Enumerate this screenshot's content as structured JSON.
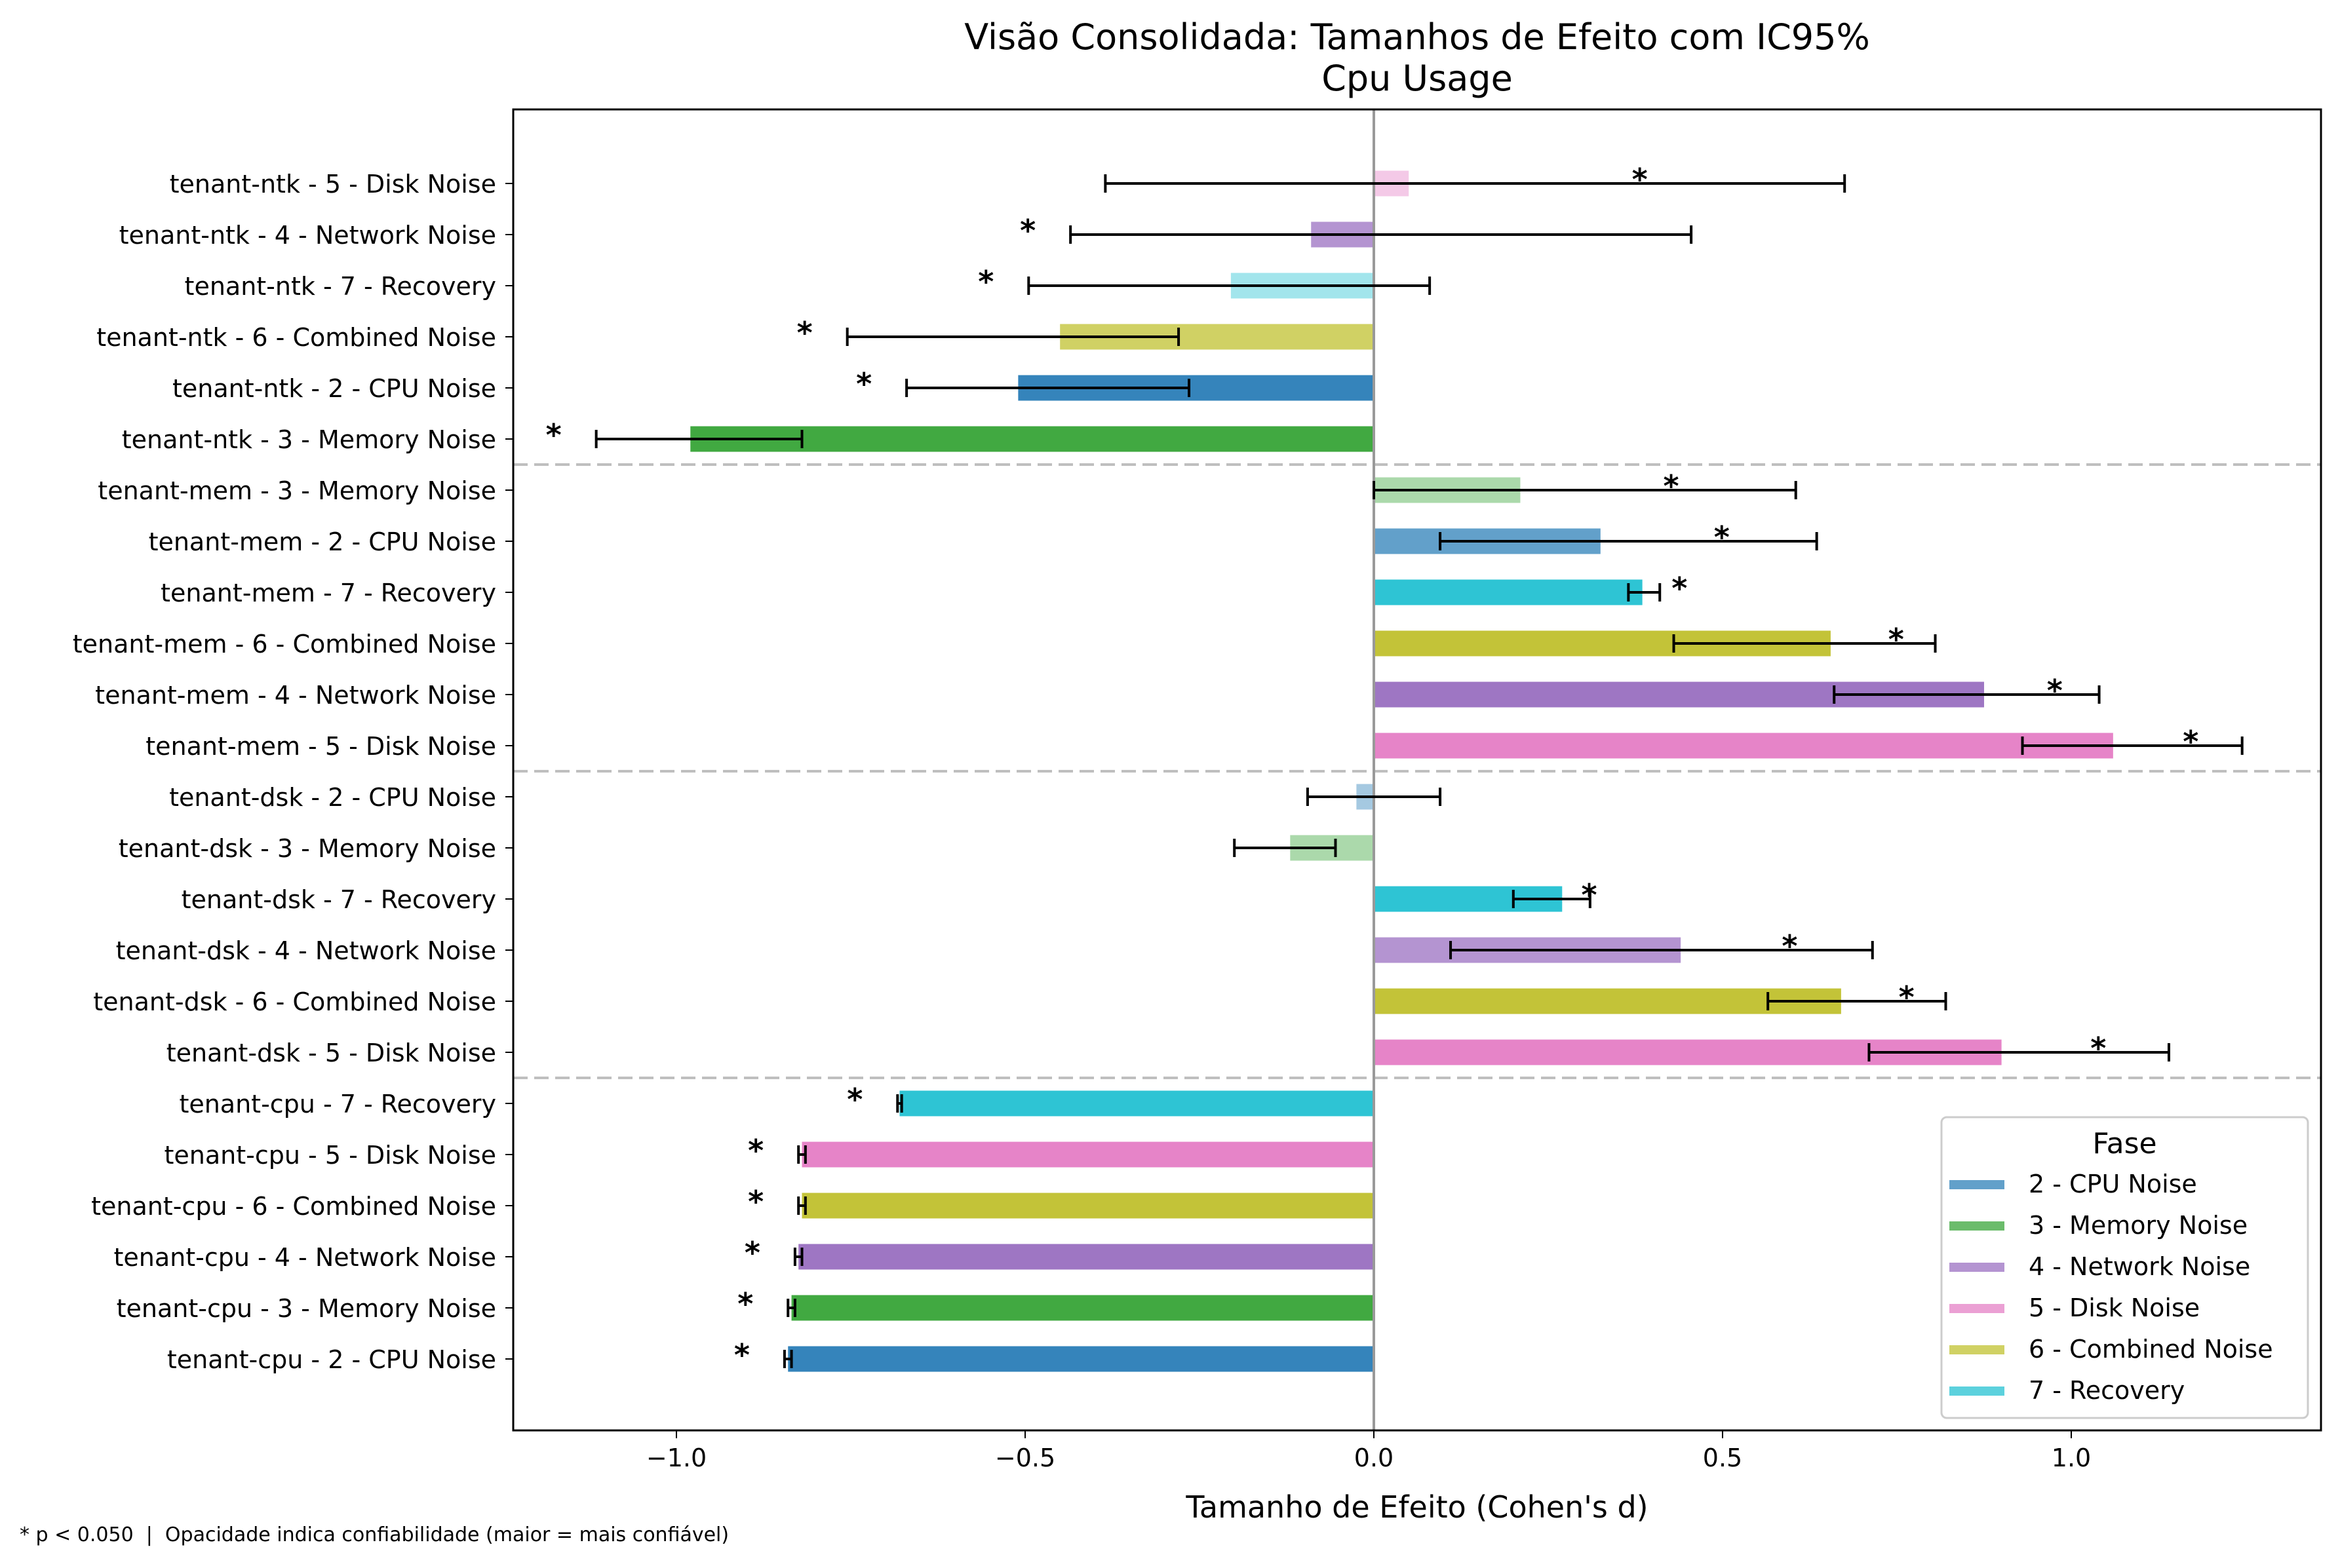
{
  "chart_data": {
    "type": "bar",
    "orientation": "horizontal",
    "title": "Visão Consolidada: Tamanhos de Efeito com IC95%",
    "subtitle": "Cpu Usage",
    "xlabel": "Tamanho de Efeito (Cohen's d)",
    "xlim": [
      -1.25,
      1.36
    ],
    "xticks": [
      -1.0,
      -0.5,
      0.0,
      0.5,
      1.0
    ],
    "xtick_labels": [
      "−1.0",
      "−0.5",
      "0.0",
      "0.5",
      "1.0"
    ],
    "grid": false,
    "legend": {
      "title": "Fase",
      "placement": "bottom-right",
      "entries": [
        {
          "label": "2 - CPU Noise",
          "color": "#1f77b4"
        },
        {
          "label": "3 - Memory Noise",
          "color": "#2ca02c"
        },
        {
          "label": "4 - Network Noise",
          "color": "#9467bd"
        },
        {
          "label": "5 - Disk Noise",
          "color": "#e377c2"
        },
        {
          "label": "6 - Combined Noise",
          "color": "#bcbd22"
        },
        {
          "label": "7 - Recovery",
          "color": "#17becf"
        }
      ]
    },
    "significance_marker": "*",
    "footnote": "* p < 0.050  |  Opacidade indica confiabilidade (maior = mais confiável)",
    "group_separators_after": [
      6,
      12,
      18
    ],
    "rows": [
      {
        "label": "tenant-cpu - 2 - CPU Noise",
        "value": -0.84,
        "ci": [
          -0.845,
          -0.835
        ],
        "color": "#1f77b4",
        "opacity": 0.9,
        "significant": true
      },
      {
        "label": "tenant-cpu - 3 - Memory Noise",
        "value": -0.835,
        "ci": [
          -0.84,
          -0.83
        ],
        "color": "#2ca02c",
        "opacity": 0.9,
        "significant": true
      },
      {
        "label": "tenant-cpu - 4 - Network Noise",
        "value": -0.825,
        "ci": [
          -0.83,
          -0.82
        ],
        "color": "#9467bd",
        "opacity": 0.9,
        "significant": true
      },
      {
        "label": "tenant-cpu - 6 - Combined Noise",
        "value": -0.82,
        "ci": [
          -0.825,
          -0.815
        ],
        "color": "#bcbd22",
        "opacity": 0.9,
        "significant": true
      },
      {
        "label": "tenant-cpu - 5 - Disk Noise",
        "value": -0.82,
        "ci": [
          -0.825,
          -0.815
        ],
        "color": "#e377c2",
        "opacity": 0.9,
        "significant": true
      },
      {
        "label": "tenant-cpu - 7 - Recovery",
        "value": -0.68,
        "ci": [
          -0.683,
          -0.677
        ],
        "color": "#17becf",
        "opacity": 0.9,
        "significant": true
      },
      {
        "label": "tenant-dsk - 5 - Disk Noise",
        "value": 0.9,
        "ci": [
          0.71,
          1.14
        ],
        "color": "#e377c2",
        "opacity": 0.9,
        "significant": true
      },
      {
        "label": "tenant-dsk - 6 - Combined Noise",
        "value": 0.67,
        "ci": [
          0.565,
          0.82
        ],
        "color": "#bcbd22",
        "opacity": 0.9,
        "significant": true
      },
      {
        "label": "tenant-dsk - 4 - Network Noise",
        "value": 0.44,
        "ci": [
          0.11,
          0.715
        ],
        "color": "#9467bd",
        "opacity": 0.7,
        "significant": true
      },
      {
        "label": "tenant-dsk - 7 - Recovery",
        "value": 0.27,
        "ci": [
          0.2,
          0.31
        ],
        "color": "#17becf",
        "opacity": 0.9,
        "significant": true
      },
      {
        "label": "tenant-dsk - 3 - Memory Noise",
        "value": -0.12,
        "ci": [
          -0.2,
          -0.055
        ],
        "color": "#2ca02c",
        "opacity": 0.4,
        "significant": false
      },
      {
        "label": "tenant-dsk - 2 - CPU Noise",
        "value": -0.025,
        "ci": [
          -0.095,
          0.095
        ],
        "color": "#1f77b4",
        "opacity": 0.4,
        "significant": false
      },
      {
        "label": "tenant-mem - 5 - Disk Noise",
        "value": 1.06,
        "ci": [
          0.93,
          1.245
        ],
        "color": "#e377c2",
        "opacity": 0.9,
        "significant": true
      },
      {
        "label": "tenant-mem - 4 - Network Noise",
        "value": 0.875,
        "ci": [
          0.66,
          1.04
        ],
        "color": "#9467bd",
        "opacity": 0.9,
        "significant": true
      },
      {
        "label": "tenant-mem - 6 - Combined Noise",
        "value": 0.655,
        "ci": [
          0.43,
          0.805
        ],
        "color": "#bcbd22",
        "opacity": 0.9,
        "significant": true
      },
      {
        "label": "tenant-mem - 7 - Recovery",
        "value": 0.385,
        "ci": [
          0.365,
          0.41
        ],
        "color": "#17becf",
        "opacity": 0.9,
        "significant": true
      },
      {
        "label": "tenant-mem - 2 - CPU Noise",
        "value": 0.325,
        "ci": [
          0.095,
          0.635
        ],
        "color": "#1f77b4",
        "opacity": 0.7,
        "significant": true
      },
      {
        "label": "tenant-mem - 3 - Memory Noise",
        "value": 0.21,
        "ci": [
          0.0,
          0.605
        ],
        "color": "#2ca02c",
        "opacity": 0.4,
        "significant": true
      },
      {
        "label": "tenant-ntk - 3 - Memory Noise",
        "value": -0.98,
        "ci": [
          -1.115,
          -0.82
        ],
        "color": "#2ca02c",
        "opacity": 0.9,
        "significant": true
      },
      {
        "label": "tenant-ntk - 2 - CPU Noise",
        "value": -0.51,
        "ci": [
          -0.67,
          -0.265
        ],
        "color": "#1f77b4",
        "opacity": 0.9,
        "significant": true
      },
      {
        "label": "tenant-ntk - 6 - Combined Noise",
        "value": -0.45,
        "ci": [
          -0.755,
          -0.28
        ],
        "color": "#bcbd22",
        "opacity": 0.7,
        "significant": true
      },
      {
        "label": "tenant-ntk - 7 - Recovery",
        "value": -0.205,
        "ci": [
          -0.495,
          0.08
        ],
        "color": "#17becf",
        "opacity": 0.4,
        "significant": true
      },
      {
        "label": "tenant-ntk - 4 - Network Noise",
        "value": -0.09,
        "ci": [
          -0.435,
          0.455
        ],
        "color": "#9467bd",
        "opacity": 0.7,
        "significant": true
      },
      {
        "label": "tenant-ntk - 5 - Disk Noise",
        "value": 0.05,
        "ci": [
          -0.385,
          0.675
        ],
        "color": "#e377c2",
        "opacity": 0.4,
        "significant": true
      }
    ]
  }
}
